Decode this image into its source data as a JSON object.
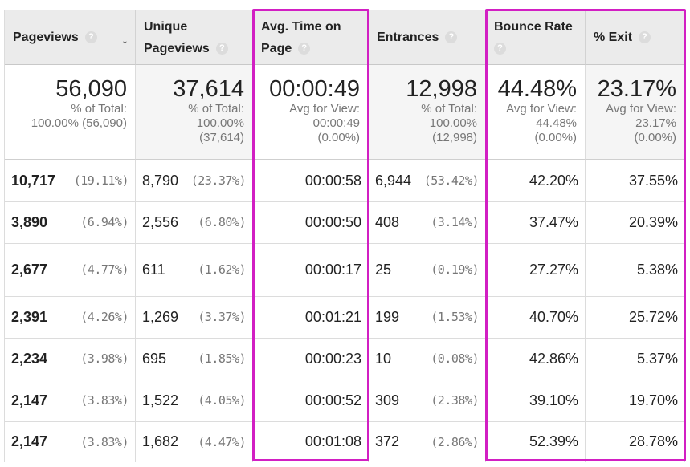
{
  "columns": [
    {
      "label_line1": "Pageviews",
      "label_line2": "",
      "help": "?",
      "sort_icon": "arrow-down-icon"
    },
    {
      "label_line1": "Unique",
      "label_line2": "Pageviews",
      "help": "?"
    },
    {
      "label_line1": "Avg. Time on",
      "label_line2": "Page",
      "help": "?"
    },
    {
      "label_line1": "Entrances",
      "label_line2": "",
      "help": "?"
    },
    {
      "label_line1": "Bounce Rate",
      "label_line2": "",
      "help": "?"
    },
    {
      "label_line1": "% Exit",
      "label_line2": "",
      "help": "?"
    }
  ],
  "sort_arrow": "↓",
  "totals": [
    {
      "value": "56,090",
      "l1": "% of Total:",
      "l2": "100.00% (56,090)",
      "l3": ""
    },
    {
      "value": "37,614",
      "l1": "% of Total:",
      "l2": "100.00%",
      "l3": "(37,614)"
    },
    {
      "value": "00:00:49",
      "l1": "Avg for View:",
      "l2": "00:00:49",
      "l3": "(0.00%)"
    },
    {
      "value": "12,998",
      "l1": "% of Total:",
      "l2": "100.00%",
      "l3": "(12,998)"
    },
    {
      "value": "44.48%",
      "l1": "Avg for View:",
      "l2": "44.48%",
      "l3": "(0.00%)"
    },
    {
      "value": "23.17%",
      "l1": "Avg for View:",
      "l2": "23.17%",
      "l3": "(0.00%)"
    }
  ],
  "rows": [
    {
      "pv": "10,717",
      "pv_pct": "(19.11%)",
      "upv": "8,790",
      "upv_pct": "(23.37%)",
      "avg": "00:00:58",
      "ent": "6,944",
      "ent_pct": "(53.42%)",
      "bounce": "42.20%",
      "exit": "37.55%"
    },
    {
      "pv": "3,890",
      "pv_pct": "(6.94%)",
      "upv": "2,556",
      "upv_pct": "(6.80%)",
      "avg": "00:00:50",
      "ent": "408",
      "ent_pct": "(3.14%)",
      "bounce": "37.47%",
      "exit": "20.39%"
    },
    {
      "pv": "2,677",
      "pv_pct": "(4.77%)",
      "upv": "611",
      "upv_pct": "(1.62%)",
      "avg": "00:00:17",
      "ent": "25",
      "ent_pct": "(0.19%)",
      "bounce": "27.27%",
      "exit": "5.38%"
    },
    {
      "pv": "2,391",
      "pv_pct": "(4.26%)",
      "upv": "1,269",
      "upv_pct": "(3.37%)",
      "avg": "00:01:21",
      "ent": "199",
      "ent_pct": "(1.53%)",
      "bounce": "40.70%",
      "exit": "25.72%"
    },
    {
      "pv": "2,234",
      "pv_pct": "(3.98%)",
      "upv": "695",
      "upv_pct": "(1.85%)",
      "avg": "00:00:23",
      "ent": "10",
      "ent_pct": "(0.08%)",
      "bounce": "42.86%",
      "exit": "5.37%"
    },
    {
      "pv": "2,147",
      "pv_pct": "(3.83%)",
      "upv": "1,522",
      "upv_pct": "(4.05%)",
      "avg": "00:00:52",
      "ent": "309",
      "ent_pct": "(2.38%)",
      "bounce": "39.10%",
      "exit": "19.70%"
    },
    {
      "pv": "2,147",
      "pv_pct": "(3.83%)",
      "upv": "1,682",
      "upv_pct": "(4.47%)",
      "avg": "00:01:08",
      "ent": "372",
      "ent_pct": "(2.86%)",
      "bounce": "52.39%",
      "exit": "28.78%"
    }
  ],
  "colors": {
    "highlight": "#d21fc3",
    "header_bg": "#ebebeb",
    "muted_text": "#777777"
  }
}
